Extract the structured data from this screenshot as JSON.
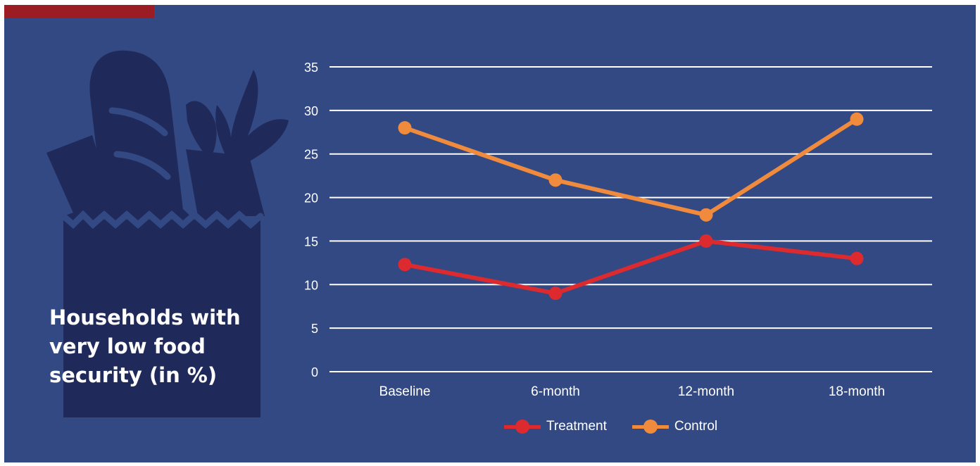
{
  "headline": "Households with\nvery low food\nsecurity (in %)",
  "colors": {
    "background": "#334984",
    "accent_bar": "#9b1c22",
    "illustration": "#1f2a5a",
    "gridlines": "#ffffff",
    "treatment": "#dc2a2f",
    "control": "#f08a3c"
  },
  "illustration": {
    "icon": "grocery-bag-icon"
  },
  "chart_data": {
    "type": "line",
    "title": "Households with very low food security (in %)",
    "xlabel": "",
    "ylabel": "",
    "categories": [
      "Baseline",
      "6-month",
      "12-month",
      "18-month"
    ],
    "y_ticks": [
      "0",
      "5",
      "10",
      "15",
      "20",
      "25",
      "30",
      "35"
    ],
    "ylim": [
      0,
      35
    ],
    "grid": true,
    "legend_position": "bottom",
    "series": [
      {
        "name": "Treatment",
        "values": [
          12.3,
          9,
          15,
          13
        ],
        "color": "#dc2a2f"
      },
      {
        "name": "Control",
        "values": [
          28,
          22,
          18,
          29
        ],
        "color": "#f08a3c"
      }
    ]
  }
}
